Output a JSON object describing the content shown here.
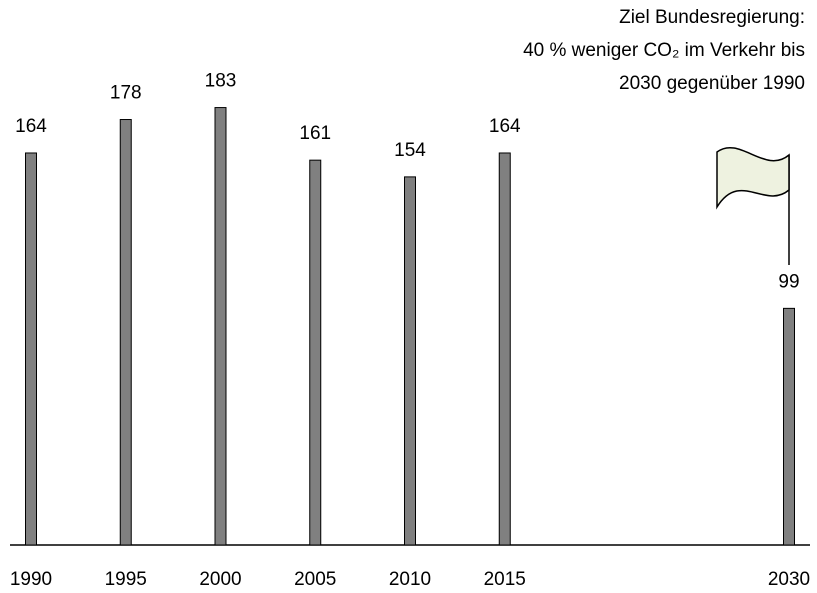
{
  "chart_data": {
    "type": "bar",
    "x": [
      1990,
      1995,
      2000,
      2005,
      2010,
      2015,
      2030
    ],
    "values": [
      164,
      178,
      183,
      161,
      154,
      164,
      99
    ],
    "color": "#808080",
    "xlim": [
      1990,
      2030
    ],
    "ylim": [
      0,
      228
    ],
    "annotation": [
      "Ziel Bundesregierung:",
      "40 % weniger CO₂ im Verkehr bis",
      "2030 gegenüber 1990"
    ],
    "flag_color": "#eef2e0"
  }
}
